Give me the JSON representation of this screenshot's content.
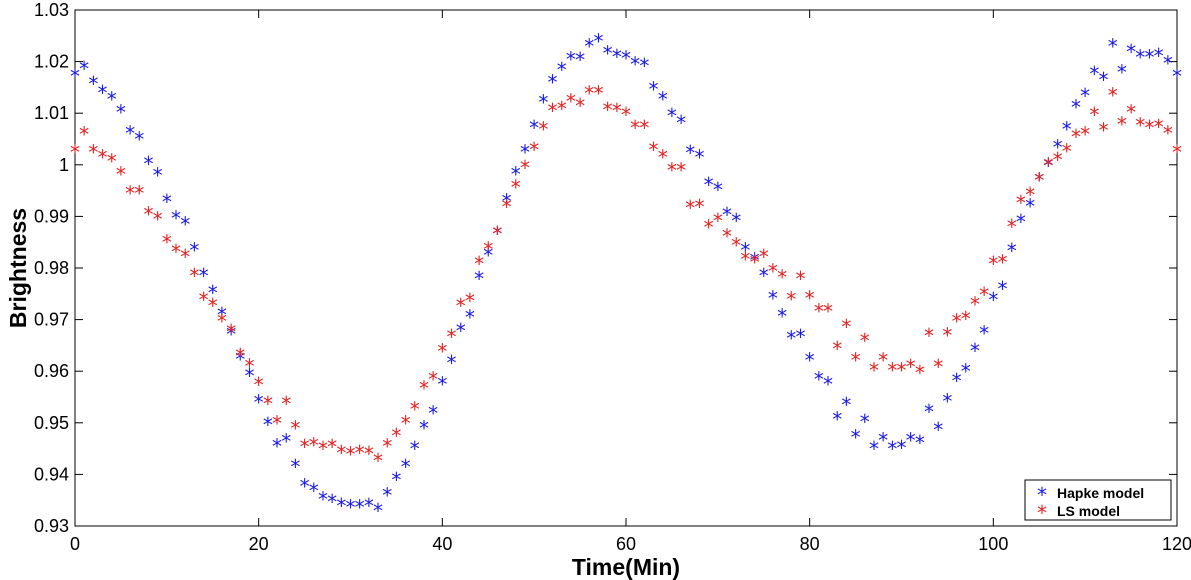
{
  "chart_data": {
    "type": "scatter",
    "title": "",
    "xlabel": "Time(Min)",
    "ylabel": "Brightness",
    "xlim": [
      0,
      120
    ],
    "ylim": [
      0.93,
      1.03
    ],
    "xticks": [
      0,
      20,
      40,
      60,
      80,
      100,
      120
    ],
    "yticks": [
      0.93,
      0.94,
      0.95,
      0.96,
      0.97,
      0.98,
      0.99,
      1,
      1.01,
      1.02,
      1.03
    ],
    "ytick_labels": [
      "0.93",
      "0.94",
      "0.95",
      "0.96",
      "0.97",
      "0.98",
      "0.99",
      "1",
      "1.01",
      "1.02",
      "1.03"
    ],
    "grid": false,
    "legend_position": "bottom-right",
    "marker": "*",
    "series": [
      {
        "name": "Hapke model",
        "color": "#1a1ae6",
        "x": [
          0,
          1,
          2,
          3,
          4,
          5,
          6,
          7,
          8,
          9,
          10,
          11,
          12,
          13,
          14,
          15,
          16,
          17,
          18,
          19,
          20,
          21,
          22,
          23,
          24,
          25,
          26,
          27,
          28,
          29,
          30,
          31,
          32,
          33,
          34,
          35,
          36,
          37,
          38,
          39,
          40,
          41,
          42,
          43,
          44,
          45,
          46,
          47,
          48,
          49,
          50,
          51,
          52,
          53,
          54,
          55,
          56,
          57,
          58,
          59,
          60,
          61,
          62,
          63,
          64,
          65,
          66,
          67,
          68,
          69,
          70,
          71,
          72,
          73,
          74,
          75,
          76,
          77,
          78,
          79,
          80,
          81,
          82,
          83,
          84,
          85,
          86,
          87,
          88,
          89,
          90,
          91,
          92,
          93,
          94,
          95,
          96,
          97,
          98,
          99,
          100,
          101,
          102,
          103,
          104,
          105,
          106,
          107,
          108,
          109,
          110,
          111,
          112,
          113,
          114,
          115,
          116,
          117,
          118,
          119,
          120
        ],
        "y": [
          1.0175,
          1.019,
          1.016,
          1.0143,
          1.013,
          1.0105,
          1.0065,
          1.0053,
          1.0005,
          0.9983,
          0.9932,
          0.99,
          0.9888,
          0.9838,
          0.9788,
          0.9755,
          0.9713,
          0.9675,
          0.9627,
          0.9595,
          0.9543,
          0.95,
          0.9458,
          0.9468,
          0.9418,
          0.938,
          0.9372,
          0.9355,
          0.935,
          0.9343,
          0.934,
          0.934,
          0.9343,
          0.9333,
          0.9363,
          0.9393,
          0.9418,
          0.9453,
          0.9493,
          0.9522,
          0.9578,
          0.962,
          0.9682,
          0.9708,
          0.9783,
          0.9828,
          0.987,
          0.9933,
          0.9985,
          1.0028,
          1.0075,
          1.0125,
          1.0163,
          1.0188,
          1.0208,
          1.0207,
          1.0233,
          1.0243,
          1.022,
          1.0213,
          1.021,
          1.0198,
          1.0195,
          1.015,
          1.013,
          1.0098,
          1.0085,
          1.0027,
          1.0018,
          0.9965,
          0.9955,
          0.9907,
          0.9895,
          0.9838,
          0.9818,
          0.9788,
          0.9745,
          0.971,
          0.9667,
          0.967,
          0.9625,
          0.9588,
          0.9578,
          0.951,
          0.9538,
          0.9475,
          0.9505,
          0.9453,
          0.947,
          0.9453,
          0.9455,
          0.947,
          0.9465,
          0.9525,
          0.949,
          0.9545,
          0.9585,
          0.9603,
          0.9643,
          0.9677,
          0.9742,
          0.9763,
          0.9837,
          0.9893,
          0.9923,
          0.9973,
          1.0002,
          1.0037,
          1.0072,
          1.0115,
          1.0137,
          1.018,
          1.0168,
          1.0233,
          1.0183,
          1.0222,
          1.0212,
          1.0212,
          1.0215,
          1.02,
          1.0175
        ]
      },
      {
        "name": "LS model",
        "color": "#e62222",
        "x": [
          0,
          1,
          2,
          3,
          4,
          5,
          6,
          7,
          8,
          9,
          10,
          11,
          12,
          13,
          14,
          15,
          16,
          17,
          18,
          19,
          20,
          21,
          22,
          23,
          24,
          25,
          26,
          27,
          28,
          29,
          30,
          31,
          32,
          33,
          34,
          35,
          36,
          37,
          38,
          39,
          40,
          41,
          42,
          43,
          44,
          45,
          46,
          47,
          48,
          49,
          50,
          51,
          52,
          53,
          54,
          55,
          56,
          57,
          58,
          59,
          60,
          61,
          62,
          63,
          64,
          65,
          66,
          67,
          68,
          69,
          70,
          71,
          72,
          73,
          74,
          75,
          76,
          77,
          78,
          79,
          80,
          81,
          82,
          83,
          84,
          85,
          86,
          87,
          88,
          89,
          90,
          91,
          92,
          93,
          94,
          95,
          96,
          97,
          98,
          99,
          100,
          101,
          102,
          103,
          104,
          105,
          106,
          107,
          108,
          109,
          110,
          111,
          112,
          113,
          114,
          115,
          116,
          117,
          118,
          119,
          120
        ],
        "y": [
          1.0028,
          1.0063,
          1.0028,
          1.0018,
          1.001,
          0.9985,
          0.9948,
          0.9948,
          0.9908,
          0.9898,
          0.9853,
          0.9835,
          0.9825,
          0.9788,
          0.9742,
          0.973,
          0.97,
          0.968,
          0.9633,
          0.9613,
          0.9577,
          0.954,
          0.9503,
          0.954,
          0.9493,
          0.9457,
          0.946,
          0.9453,
          0.9457,
          0.9445,
          0.9442,
          0.9445,
          0.9443,
          0.943,
          0.9458,
          0.9478,
          0.9503,
          0.953,
          0.957,
          0.9588,
          0.9642,
          0.967,
          0.973,
          0.974,
          0.9812,
          0.984,
          0.987,
          0.9922,
          0.996,
          0.9998,
          1.0033,
          1.0072,
          1.0108,
          1.0112,
          1.0127,
          1.0118,
          1.0142,
          1.0142,
          1.011,
          1.0108,
          1.01,
          1.0075,
          1.0075,
          1.0033,
          1.0018,
          0.9993,
          0.9993,
          0.992,
          0.9922,
          0.9882,
          0.9895,
          0.9865,
          0.9847,
          0.982,
          0.9815,
          0.9825,
          0.9797,
          0.9785,
          0.9743,
          0.9783,
          0.9745,
          0.972,
          0.972,
          0.9647,
          0.969,
          0.9625,
          0.9662,
          0.9605,
          0.9625,
          0.9605,
          0.9605,
          0.9612,
          0.96,
          0.9672,
          0.9612,
          0.9673,
          0.97,
          0.9705,
          0.9733,
          0.9752,
          0.9812,
          0.9815,
          0.9883,
          0.993,
          0.9945,
          0.9973,
          1.0003,
          1.0013,
          1.003,
          1.0058,
          1.0063,
          1.01,
          1.007,
          1.0138,
          1.0082,
          1.0105,
          1.008,
          1.0075,
          1.0077,
          1.0065,
          1.0028
        ]
      }
    ]
  }
}
